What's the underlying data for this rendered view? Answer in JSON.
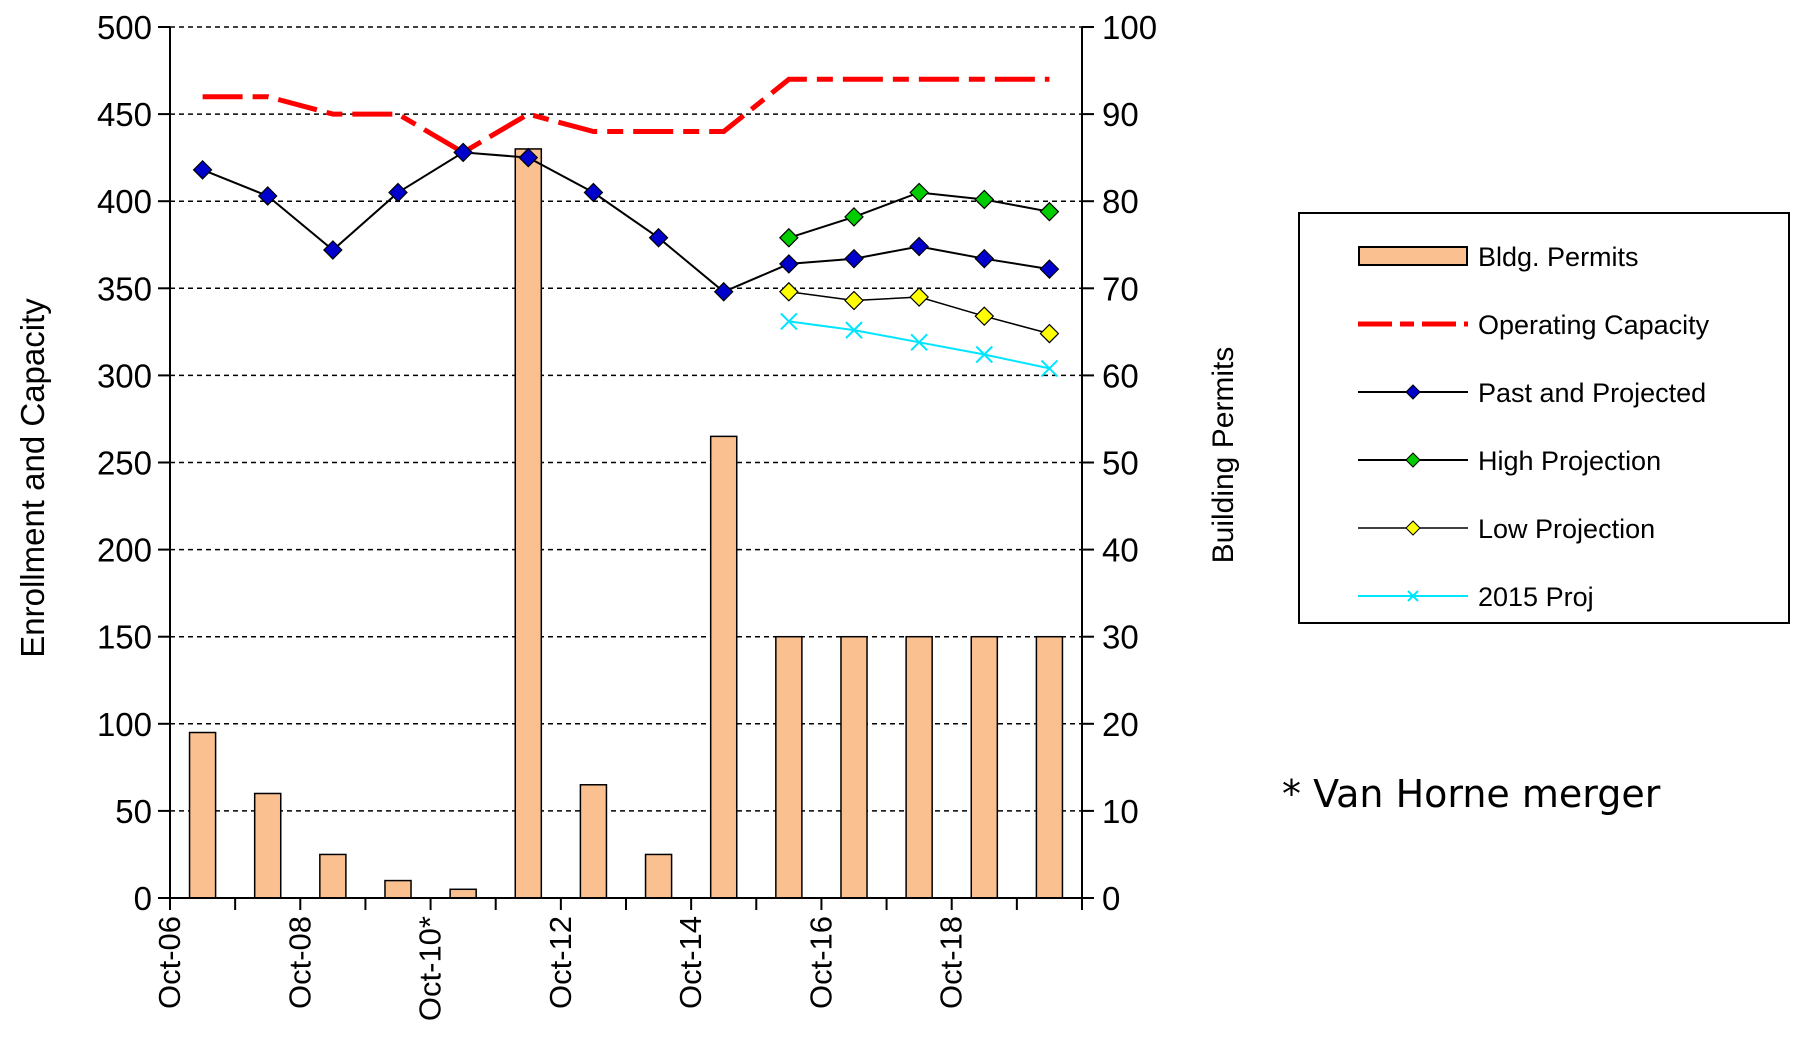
{
  "chart_data": {
    "type": "bar",
    "categories": [
      "Oct-06",
      "",
      "Oct-08",
      "",
      "Oct-10*",
      "",
      "Oct-12",
      "",
      "Oct-14",
      "",
      "Oct-16",
      "",
      "Oct-18",
      ""
    ],
    "ylabel": "Enrollment and Capacity",
    "y2label": "Building Permits",
    "ylim": [
      0,
      500
    ],
    "y2lim": [
      0,
      100
    ],
    "yticks": [
      "0",
      "50",
      "100",
      "150",
      "200",
      "250",
      "300",
      "350",
      "400",
      "450",
      "500"
    ],
    "y2ticks": [
      "0",
      "10",
      "20",
      "30",
      "40",
      "50",
      "60",
      "70",
      "80",
      "90",
      "100"
    ],
    "grid": "horizontal dashed",
    "legend_position": "right",
    "series": [
      {
        "name": "Bldg. Permits",
        "type": "bar",
        "axis": "right",
        "color": "#FAC090",
        "values": [
          19,
          12,
          5,
          2,
          1,
          86,
          13,
          5,
          53,
          30,
          30,
          30,
          30,
          30
        ]
      },
      {
        "name": "Operating Capacity",
        "type": "line",
        "style": "dashed",
        "color": "#FF0000",
        "values": [
          460,
          460,
          450,
          450,
          428,
          450,
          440,
          440,
          440,
          470,
          470,
          470,
          470,
          470
        ]
      },
      {
        "name": "Past and Projected",
        "type": "line",
        "marker": "diamond",
        "color": "#0000CC",
        "values": [
          418,
          403,
          372,
          405,
          428,
          425,
          405,
          379,
          348,
          364,
          367,
          374,
          367,
          361
        ]
      },
      {
        "name": "High Projection",
        "type": "line",
        "marker": "diamond",
        "color": "#00CC00",
        "values": [
          null,
          null,
          null,
          null,
          null,
          null,
          null,
          null,
          null,
          379,
          391,
          405,
          401,
          394
        ]
      },
      {
        "name": "Low Projection",
        "type": "line",
        "marker": "diamond",
        "color": "#FFFF00",
        "values": [
          null,
          null,
          null,
          null,
          null,
          null,
          null,
          null,
          null,
          348,
          343,
          345,
          334,
          324
        ]
      },
      {
        "name": "2015 Proj",
        "type": "line",
        "marker": "x",
        "color": "#00E5FF",
        "values": [
          null,
          null,
          null,
          null,
          null,
          null,
          null,
          null,
          null,
          331,
          326,
          319,
          312,
          304
        ]
      }
    ]
  },
  "note": "* Van Horne merger"
}
